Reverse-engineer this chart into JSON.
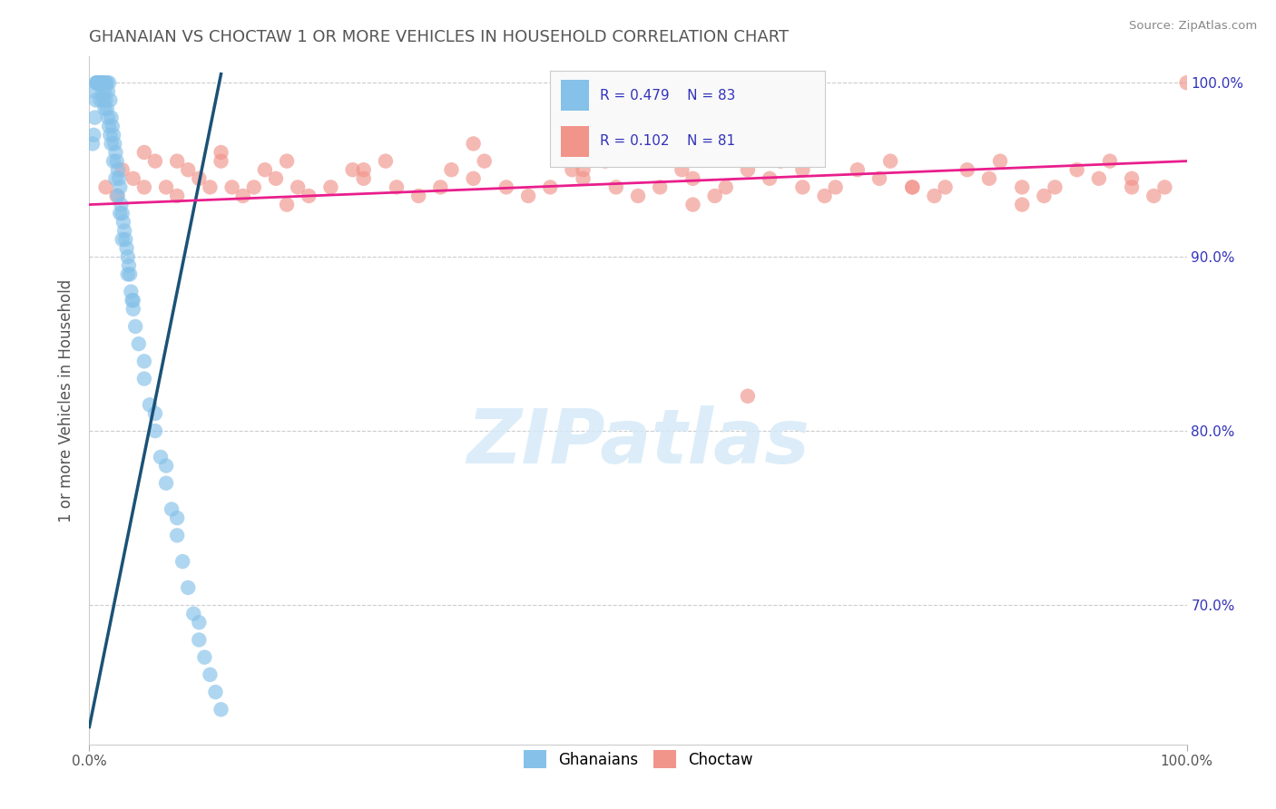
{
  "title": "GHANAIAN VS CHOCTAW 1 OR MORE VEHICLES IN HOUSEHOLD CORRELATION CHART",
  "source": "Source: ZipAtlas.com",
  "ylabel": "1 or more Vehicles in Household",
  "xmin": 0.0,
  "xmax": 100.0,
  "ymin": 62.0,
  "ymax": 101.5,
  "ytick_values": [
    70.0,
    80.0,
    90.0,
    100.0
  ],
  "ytick_labels_right": [
    "70.0%",
    "80.0%",
    "90.0%",
    "100.0%"
  ],
  "xtick_values": [
    0.0,
    100.0
  ],
  "xtick_labels": [
    "0.0%",
    "100.0%"
  ],
  "legend_r1": "R = 0.479",
  "legend_n1": "N = 83",
  "legend_r2": "R = 0.102",
  "legend_n2": "N = 81",
  "bottom_legend_ghanaians": "Ghanaians",
  "bottom_legend_choctaw": "Choctaw",
  "blue_color": "#85c1e9",
  "pink_color": "#f1948a",
  "blue_line_color": "#1a5276",
  "pink_line_color": "#e91e8c",
  "title_color": "#555555",
  "legend_text_color": "#3333bb",
  "right_axis_color": "#3333bb",
  "watermark_text": "ZIPatlas",
  "watermark_color": "#d6eaf8",
  "background_color": "#ffffff",
  "grid_color": "#cccccc",
  "gh_x": [
    0.3,
    0.4,
    0.5,
    0.6,
    0.7,
    0.8,
    0.9,
    1.0,
    1.1,
    1.2,
    1.3,
    1.4,
    1.5,
    1.6,
    1.7,
    1.8,
    1.9,
    2.0,
    2.1,
    2.2,
    2.3,
    2.4,
    2.5,
    2.6,
    2.7,
    2.8,
    2.9,
    3.0,
    3.1,
    3.2,
    3.3,
    3.4,
    3.5,
    3.6,
    3.7,
    3.8,
    3.9,
    4.0,
    4.2,
    4.5,
    5.0,
    5.5,
    6.0,
    6.5,
    7.0,
    7.5,
    8.0,
    8.5,
    9.0,
    9.5,
    10.0,
    10.5,
    11.0,
    11.5,
    12.0,
    0.5,
    0.6,
    0.7,
    0.8,
    0.9,
    1.0,
    1.1,
    1.2,
    1.3,
    1.4,
    1.5,
    1.6,
    1.7,
    1.8,
    1.9,
    2.0,
    2.2,
    2.4,
    2.6,
    2.8,
    3.0,
    3.5,
    4.0,
    5.0,
    6.0,
    7.0,
    8.0,
    10.0
  ],
  "gh_y": [
    96.5,
    97.0,
    99.5,
    100.0,
    100.0,
    100.0,
    100.0,
    99.0,
    100.0,
    99.5,
    99.0,
    98.5,
    100.0,
    100.0,
    99.5,
    100.0,
    99.0,
    98.0,
    97.5,
    97.0,
    96.5,
    96.0,
    95.5,
    95.0,
    94.5,
    94.0,
    93.0,
    92.5,
    92.0,
    91.5,
    91.0,
    90.5,
    90.0,
    89.5,
    89.0,
    88.0,
    87.5,
    87.0,
    86.0,
    85.0,
    83.0,
    81.5,
    80.0,
    78.5,
    77.0,
    75.5,
    74.0,
    72.5,
    71.0,
    69.5,
    68.0,
    67.0,
    66.0,
    65.0,
    64.0,
    98.0,
    99.0,
    100.0,
    100.0,
    100.0,
    100.0,
    100.0,
    100.0,
    100.0,
    99.5,
    99.0,
    98.5,
    98.0,
    97.5,
    97.0,
    96.5,
    95.5,
    94.5,
    93.5,
    92.5,
    91.0,
    89.0,
    87.5,
    84.0,
    81.0,
    78.0,
    75.0,
    69.0
  ],
  "ch_x": [
    1.5,
    2.5,
    3.0,
    4.0,
    5.0,
    6.0,
    7.0,
    8.0,
    9.0,
    10.0,
    11.0,
    12.0,
    13.0,
    14.0,
    15.0,
    16.0,
    17.0,
    18.0,
    19.0,
    20.0,
    22.0,
    24.0,
    25.0,
    27.0,
    28.0,
    30.0,
    32.0,
    33.0,
    35.0,
    36.0,
    38.0,
    40.0,
    42.0,
    44.0,
    45.0,
    47.0,
    48.0,
    50.0,
    52.0,
    54.0,
    55.0,
    57.0,
    58.0,
    60.0,
    62.0,
    63.0,
    65.0,
    67.0,
    68.0,
    70.0,
    72.0,
    73.0,
    75.0,
    77.0,
    78.0,
    80.0,
    82.0,
    83.0,
    85.0,
    87.0,
    88.0,
    90.0,
    92.0,
    93.0,
    95.0,
    97.0,
    98.0,
    100.0,
    5.0,
    8.0,
    12.0,
    18.0,
    25.0,
    35.0,
    45.0,
    55.0,
    65.0,
    75.0,
    85.0,
    95.0,
    60.0
  ],
  "ch_y": [
    94.0,
    93.5,
    95.0,
    94.5,
    94.0,
    95.5,
    94.0,
    93.5,
    95.0,
    94.5,
    94.0,
    95.5,
    94.0,
    93.5,
    94.0,
    95.0,
    94.5,
    95.5,
    94.0,
    93.5,
    94.0,
    95.0,
    94.5,
    95.5,
    94.0,
    93.5,
    94.0,
    95.0,
    94.5,
    95.5,
    94.0,
    93.5,
    94.0,
    95.0,
    94.5,
    95.5,
    94.0,
    93.5,
    94.0,
    95.0,
    94.5,
    93.5,
    94.0,
    95.0,
    94.5,
    95.5,
    94.0,
    93.5,
    94.0,
    95.0,
    94.5,
    95.5,
    94.0,
    93.5,
    94.0,
    95.0,
    94.5,
    95.5,
    94.0,
    93.5,
    94.0,
    95.0,
    94.5,
    95.5,
    94.0,
    93.5,
    94.0,
    100.0,
    96.0,
    95.5,
    96.0,
    93.0,
    95.0,
    96.5,
    95.0,
    93.0,
    95.0,
    94.0,
    93.0,
    94.5,
    82.0
  ],
  "gh_line_x": [
    0.0,
    12.0
  ],
  "gh_line_y": [
    63.0,
    100.5
  ],
  "ch_line_x": [
    0.0,
    100.0
  ],
  "ch_line_y": [
    93.0,
    95.5
  ]
}
